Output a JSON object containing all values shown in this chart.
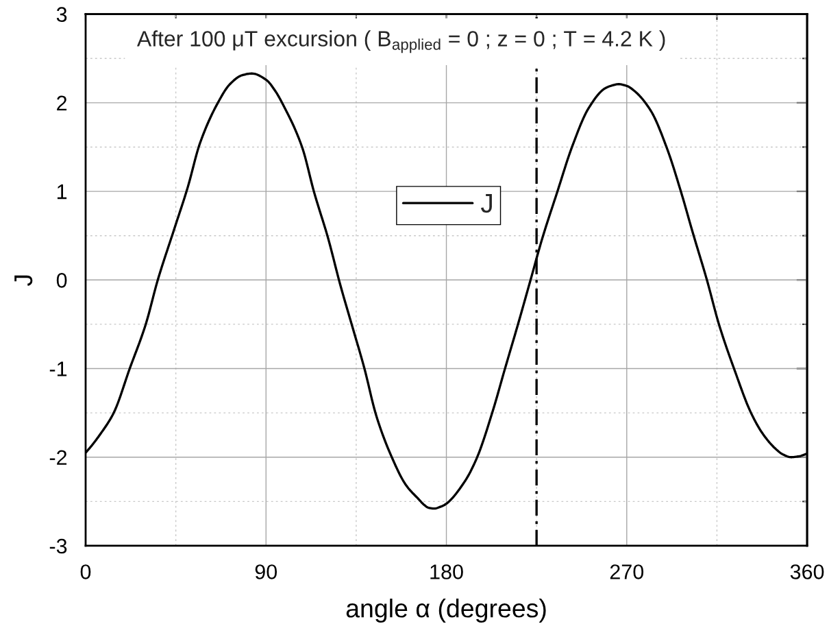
{
  "chart_data": {
    "type": "line",
    "title": "After 100 μT excursion ( B$_{applied}$ = 0 ; z = 0 ; T = 4.2 K )",
    "xlabel": "angle α (degrees)",
    "ylabel": "J",
    "x": [
      0,
      3,
      7,
      14,
      22,
      30,
      36,
      44,
      51,
      57,
      66,
      72,
      78,
      83,
      90,
      95,
      98,
      108,
      114,
      121,
      127,
      133,
      139,
      145,
      152,
      160,
      166,
      169,
      171,
      174,
      177,
      179,
      189,
      195,
      203,
      209,
      216,
      222,
      228,
      235,
      243,
      251,
      259,
      262,
      266,
      270,
      274,
      282,
      290,
      297,
      303,
      310,
      316,
      324,
      332,
      338,
      344,
      348,
      352,
      356,
      360
    ],
    "series": [
      {
        "name": "J",
        "color": "#000000",
        "values": [
          -1.95,
          -1.87,
          -1.75,
          -1.5,
          -1.0,
          -0.5,
          0.0,
          0.56,
          1.05,
          1.54,
          2.0,
          2.21,
          2.31,
          2.33,
          2.26,
          2.12,
          2.0,
          1.5,
          0.99,
          0.47,
          -0.05,
          -0.52,
          -0.99,
          -1.53,
          -1.96,
          -2.32,
          -2.47,
          -2.54,
          -2.57,
          -2.58,
          -2.56,
          -2.54,
          -2.28,
          -2.02,
          -1.49,
          -1.02,
          -0.48,
          0.0,
          0.48,
          0.97,
          1.52,
          1.94,
          2.16,
          2.19,
          2.21,
          2.19,
          2.13,
          1.91,
          1.49,
          1.0,
          0.53,
          0.0,
          -0.5,
          -1.03,
          -1.5,
          -1.74,
          -1.9,
          -1.97,
          -2.0,
          -1.99,
          -1.96
        ]
      }
    ],
    "xlim": [
      0,
      360
    ],
    "xticks": [
      0,
      {
        "value": 45,
        "label": null
      },
      90,
      {
        "value": 135,
        "label": null
      },
      180,
      {
        "value": 225,
        "label": null
      },
      270,
      {
        "value": 315,
        "label": null
      },
      360
    ],
    "ylim": [
      -3,
      3
    ],
    "yticks": [
      -3,
      {
        "value": -2.5,
        "label": null
      },
      -2,
      {
        "value": -1.5,
        "label": null
      },
      -1,
      {
        "value": -0.5,
        "label": null
      },
      0,
      {
        "value": 0.5,
        "label": null
      },
      1,
      {
        "value": 1.5,
        "label": null
      },
      2,
      {
        "value": 2.5,
        "label": null
      },
      3
    ],
    "grid": true,
    "legend": "center",
    "ref_lines": [
      {
        "axis": "x",
        "value": 225,
        "color": "#000000",
        "line_style": "dashdot"
      }
    ]
  }
}
